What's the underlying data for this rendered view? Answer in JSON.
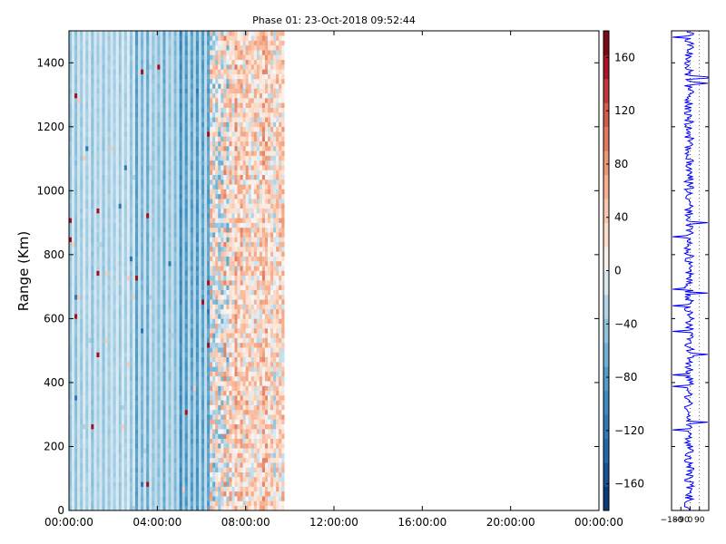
{
  "chart_data": [
    {
      "type": "heatmap",
      "title": "Phase 01: 23-Oct-2018 09:52:44",
      "xlabel": "",
      "ylabel": "Range (Km)",
      "xlim": [
        "00:00:00",
        "24:00:00"
      ],
      "ylim": [
        0,
        1500
      ],
      "x_ticks": [
        "00:00:00",
        "04:00:00",
        "08:00:00",
        "12:00:00",
        "16:00:00",
        "20:00:00",
        "00:00:00"
      ],
      "y_ticks": [
        0,
        200,
        400,
        600,
        800,
        1000,
        1200,
        1400
      ],
      "data_extent_hours": [
        0,
        9.8
      ],
      "description_of_values": "Phase values in degrees; mostly negative (blue) before ~06:20, mixed/positive (red) from ~06:20 to ~09:50, no data afterwards",
      "colormap": "RdBu_r",
      "colorbar": {
        "range": [
          -180,
          180
        ],
        "ticks": [
          -160,
          -120,
          -80,
          -40,
          0,
          40,
          80,
          120,
          160
        ]
      },
      "colors": {
        "low": "#08306b",
        "mid": "#f7f7f7",
        "high": "#67000d",
        "line": "#0000ff"
      }
    },
    {
      "type": "line",
      "title": "",
      "xlabel": "",
      "ylabel": "",
      "xlim": [
        -180,
        180
      ],
      "ylim": [
        0,
        1500
      ],
      "x_ticks": [
        "−180",
        "−90",
        "0",
        "90"
      ],
      "series_description": "Phase profile vs range for the selected time, oscillating roughly between -180 and 180 degrees"
    }
  ]
}
